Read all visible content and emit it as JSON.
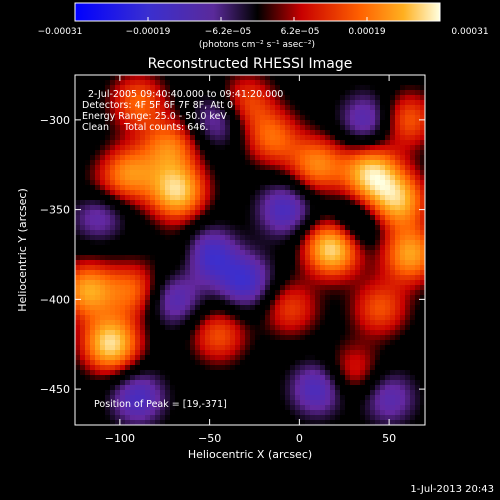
{
  "chart_data": {
    "type": "heatmap",
    "title": "Reconstructed RHESSI Image",
    "xlabel": "Heliocentric X (arcsec)",
    "ylabel": "Heliocentric Y (arcsec)",
    "xlim": [
      -125,
      70
    ],
    "ylim": [
      -470,
      -275
    ],
    "x_ticks": [
      -100,
      -50,
      0,
      50
    ],
    "x_tick_labels": [
      "−100",
      "−50",
      "0",
      "50"
    ],
    "y_ticks": [
      -300,
      -350,
      -400,
      -450
    ],
    "y_tick_labels": [
      "−300",
      "−350",
      "−400",
      "−450"
    ],
    "colorbar": {
      "min": -0.00031,
      "max": 0.00031,
      "tick_labels": [
        "−0.00031",
        "−0.00019",
        "−6.2e−05",
        "6.2e−05",
        "0.00019",
        "0.00031"
      ],
      "unit_label": "(photons cm⁻² s⁻¹ asec⁻²)"
    },
    "annotations": [
      "2-Jul-2005 09:40:40.000 to 09:41:20.000",
      "Detectors: 4F 5F 6F 7F 8F, Att 0",
      "Energy Range: 25.0 - 50.0 keV",
      "Clean     Total counts: 646.",
      "Position of Peak = [19,-371]"
    ],
    "peak": {
      "x": 19,
      "y": -371
    },
    "blobs": [
      {
        "x": 19,
        "y": -371,
        "v": 1.0
      },
      {
        "x": 40,
        "y": -330,
        "v": 0.85
      },
      {
        "x": 55,
        "y": -345,
        "v": 0.75
      },
      {
        "x": 62,
        "y": -375,
        "v": 0.7
      },
      {
        "x": 10,
        "y": -325,
        "v": 0.6
      },
      {
        "x": -68,
        "y": -340,
        "v": 0.85
      },
      {
        "x": -72,
        "y": -315,
        "v": 0.55
      },
      {
        "x": -95,
        "y": -330,
        "v": 0.6
      },
      {
        "x": -112,
        "y": -345,
        "v": 0.5
      },
      {
        "x": -105,
        "y": -425,
        "v": 0.9
      },
      {
        "x": -118,
        "y": -395,
        "v": 0.7
      },
      {
        "x": -92,
        "y": -395,
        "v": 0.5
      },
      {
        "x": -15,
        "y": -310,
        "v": 0.5
      },
      {
        "x": -30,
        "y": -290,
        "v": 0.45
      },
      {
        "x": -90,
        "y": -290,
        "v": 0.5
      },
      {
        "x": -45,
        "y": -420,
        "v": 0.45
      },
      {
        "x": -5,
        "y": -405,
        "v": 0.4
      },
      {
        "x": 30,
        "y": -440,
        "v": 0.35
      },
      {
        "x": -60,
        "y": -375,
        "v": 0.35
      },
      {
        "x": 45,
        "y": -405,
        "v": 0.45
      },
      {
        "x": 60,
        "y": -300,
        "v": 0.5
      },
      {
        "x": -112,
        "y": -350,
        "v": -0.75
      },
      {
        "x": -52,
        "y": -375,
        "v": -0.75
      },
      {
        "x": -8,
        "y": -350,
        "v": -0.5
      },
      {
        "x": -30,
        "y": -390,
        "v": -0.55
      },
      {
        "x": -90,
        "y": -455,
        "v": -0.5
      },
      {
        "x": -70,
        "y": -400,
        "v": -0.45
      },
      {
        "x": 10,
        "y": -450,
        "v": -0.5
      },
      {
        "x": 38,
        "y": -300,
        "v": -0.45
      },
      {
        "x": -45,
        "y": -300,
        "v": -0.4
      },
      {
        "x": 30,
        "y": -360,
        "v": -0.4
      },
      {
        "x": 50,
        "y": -455,
        "v": -0.4
      }
    ]
  },
  "footer_date": "1-Jul-2013 20:43"
}
